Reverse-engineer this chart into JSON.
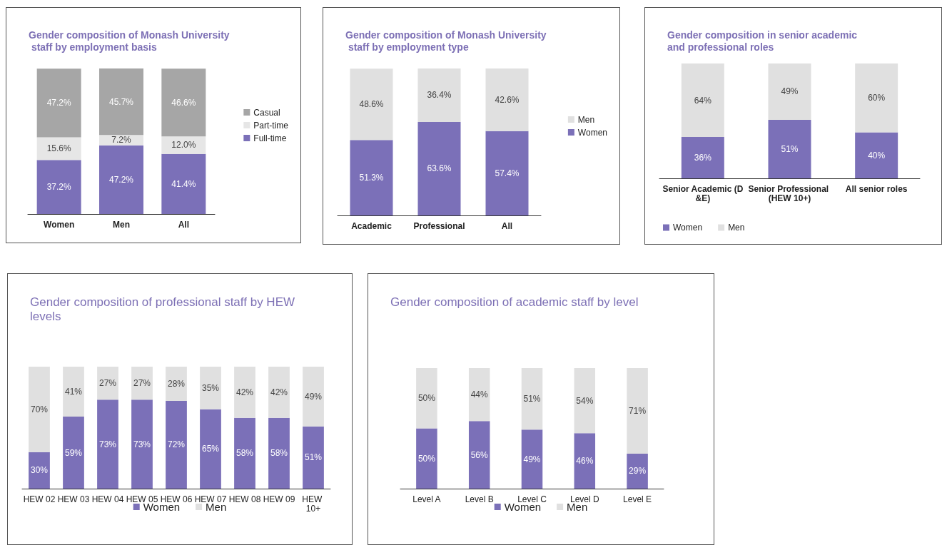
{
  "chart_data": [
    {
      "type": "bar",
      "title": "Gender composition of Monash University staff by employment basis",
      "categories": [
        "Women",
        "Men",
        "All"
      ],
      "stacked": true,
      "legend": "right",
      "grid": false,
      "series": [
        {
          "name": "Full-time",
          "color": "#7b70b8",
          "values": [
            37.2,
            47.2,
            41.4
          ],
          "value_labels": [
            "37.2%",
            "47.2%",
            "41.4%"
          ]
        },
        {
          "name": "Part-time",
          "color": "#e6e6e6",
          "values": [
            15.6,
            7.2,
            12.0
          ],
          "value_labels": [
            "15.6%",
            "7.2%",
            "12.0%"
          ]
        },
        {
          "name": "Casual",
          "color": "#a6a6a6",
          "values": [
            47.2,
            45.7,
            46.6
          ],
          "value_labels": [
            "47.2%",
            "45.7%",
            "46.6%"
          ]
        }
      ]
    },
    {
      "type": "bar",
      "title": "Gender composition of Monash University staff by employment type",
      "categories": [
        "Academic",
        "Professional",
        "All"
      ],
      "stacked": true,
      "legend": "right",
      "grid": false,
      "series": [
        {
          "name": "Women",
          "color": "#7b70b8",
          "values": [
            51.3,
            63.6,
            57.4
          ],
          "value_labels": [
            "51.3%",
            "63.6%",
            "57.4%"
          ]
        },
        {
          "name": "Men",
          "color": "#e0e0e0",
          "values": [
            48.6,
            36.4,
            42.6
          ],
          "value_labels": [
            "48.6%",
            "36.4%",
            "42.6%"
          ]
        }
      ]
    },
    {
      "type": "bar",
      "title": "Gender composition in senior academic and professional roles",
      "categories": [
        "Senior Academic (D&E)",
        "Senior Professional (HEW 10+)",
        "All senior roles"
      ],
      "stacked": true,
      "legend": "bottom left",
      "grid": false,
      "series": [
        {
          "name": "Women",
          "color": "#7b70b8",
          "values": [
            36,
            51,
            40
          ],
          "value_labels": [
            "36%",
            "51%",
            "40%"
          ]
        },
        {
          "name": "Men",
          "color": "#e0e0e0",
          "values": [
            64,
            49,
            60
          ],
          "value_labels": [
            "64%",
            "49%",
            "60%"
          ]
        }
      ]
    },
    {
      "type": "bar",
      "title": "Gender composition of professional staff by HEW levels",
      "categories": [
        "HEW 02",
        "HEW 03",
        "HEW 04",
        "HEW 05",
        "HEW 06",
        "HEW 07",
        "HEW 08",
        "HEW 09",
        "HEW 10+"
      ],
      "stacked": true,
      "legend": "bottom",
      "grid": false,
      "series": [
        {
          "name": "Women",
          "color": "#7b70b8",
          "values": [
            30,
            59,
            73,
            73,
            72,
            65,
            58,
            58,
            51
          ],
          "value_labels": [
            "30%",
            "59%",
            "73%",
            "73%",
            "72%",
            "65%",
            "58%",
            "58%",
            "51%"
          ]
        },
        {
          "name": "Men",
          "color": "#e0e0e0",
          "values": [
            70,
            41,
            27,
            27,
            28,
            35,
            42,
            42,
            49
          ],
          "value_labels": [
            "70%",
            "41%",
            "27%",
            "27%",
            "28%",
            "35%",
            "42%",
            "42%",
            "49%"
          ]
        }
      ]
    },
    {
      "type": "bar",
      "title": "Gender composition of academic staff by level",
      "categories": [
        "Level A",
        "Level B",
        "Level C",
        "Level D",
        "Level E"
      ],
      "stacked": true,
      "legend": "bottom",
      "grid": false,
      "series": [
        {
          "name": "Women",
          "color": "#7b70b8",
          "values": [
            50,
            56,
            49,
            46,
            29
          ],
          "value_labels": [
            "50%",
            "56%",
            "49%",
            "46%",
            "29%"
          ]
        },
        {
          "name": "Men",
          "color": "#e0e0e0",
          "values": [
            50,
            44,
            51,
            54,
            71
          ],
          "value_labels": [
            "50%",
            "44%",
            "51%",
            "54%",
            "71%"
          ]
        }
      ]
    }
  ]
}
